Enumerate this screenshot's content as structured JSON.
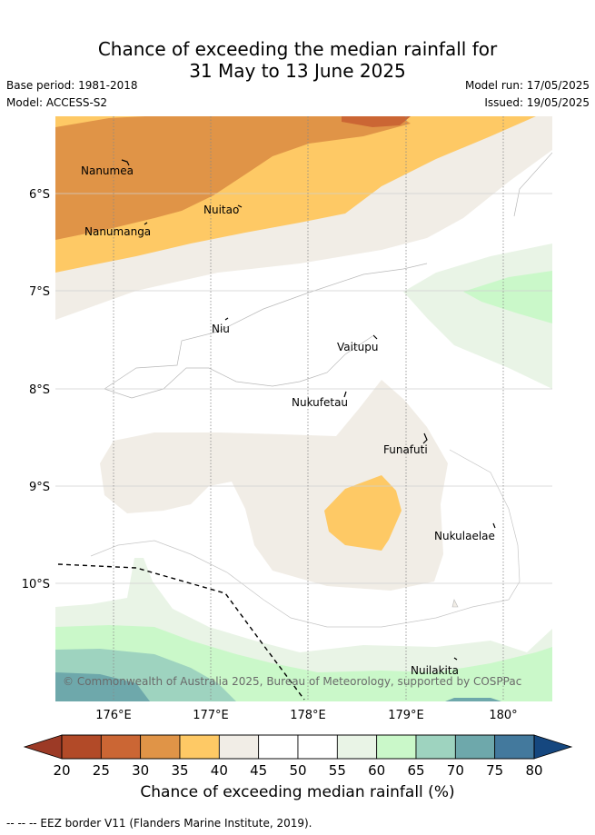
{
  "title": {
    "line1": "Chance of exceeding the median rainfall for",
    "line2": "31 May to 13 June 2025"
  },
  "meta": {
    "base_period": "Base period: 1981-2018",
    "model": "Model: ACCESS-S2",
    "model_run": "Model run: 17/05/2025",
    "issued": "Issued: 19/05/2025"
  },
  "map": {
    "x_ticks": [
      "176°E",
      "177°E",
      "178°E",
      "179°E",
      "180°"
    ],
    "y_ticks": [
      "6°S",
      "7°S",
      "8°S",
      "9°S",
      "10°S"
    ],
    "places": [
      "Nanumea",
      "Nuitao",
      "Nanumanga",
      "Niu",
      "Vaitupu",
      "Nukufetau",
      "Funafuti",
      "Nukulaelae",
      "Nuilakita"
    ],
    "copyright": "© Commonwealth of Australia 2025, Bureau of Meteorology, supported by COSPPac"
  },
  "colorbar": {
    "ticks": [
      "20",
      "25",
      "30",
      "35",
      "40",
      "45",
      "50",
      "55",
      "60",
      "65",
      "70",
      "75",
      "80"
    ],
    "colors": [
      "#b24a28",
      "#cb6634",
      "#e09447",
      "#fec965",
      "#f1ede6",
      "#ffffff",
      "#ffffff",
      "#e9f4e6",
      "#caf8c9",
      "#9ed3bf",
      "#6ea8ab",
      "#43799d"
    ],
    "low_color": "#9c3a26",
    "high_color": "#15477f",
    "label": "Chance of exceeding median rainfall (%)"
  },
  "footnote": "--  --  -- EEZ border V11 (Flanders Marine Institute, 2019)."
}
